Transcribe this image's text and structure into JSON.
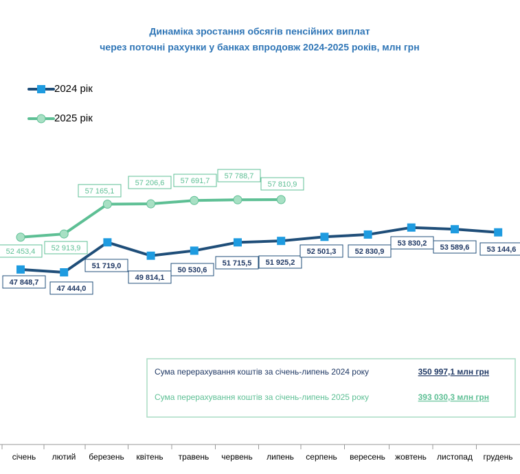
{
  "chart_data": {
    "type": "line",
    "title": [
      "Динаміка зростання обсягів пенсійних виплат",
      "через поточні рахунки у банках впродовж 2024-2025 років, млн грн"
    ],
    "categories": [
      "січень",
      "лютий",
      "березень",
      "квітень",
      "травень",
      "червень",
      "липень",
      "серпень",
      "вересень",
      "жовтень",
      "листопад",
      "грудень"
    ],
    "series": [
      {
        "name": "2024 рік",
        "color": "#1f4e79",
        "marker_color": "#1e9be0",
        "marker": "square",
        "values": [
          47848.7,
          47444.0,
          51719.0,
          49814.1,
          50530.6,
          51715.5,
          51925.2,
          52501.3,
          52830.9,
          53830.2,
          53589.6,
          53144.6
        ],
        "value_labels": [
          "47 848,7",
          "47 444,0",
          "51 719,0",
          "49 814,1",
          "50 530,6",
          "51 715,5",
          "51 925,2",
          "52 501,3",
          "52 830,9",
          "53 830,2",
          "53 589,6",
          "53 144,6"
        ]
      },
      {
        "name": "2025 рік",
        "color": "#5dbf94",
        "marker_color": "#a8e0c4",
        "marker": "circle",
        "values": [
          52453.4,
          52913.9,
          57165.1,
          57206.6,
          57691.7,
          57788.7,
          57810.9,
          null,
          null,
          null,
          null,
          null
        ],
        "value_labels": [
          "52 453,4",
          "52 913,9",
          "57 165,1",
          "57 206,6",
          "57 691,7",
          "57 788,7",
          "57 810,9",
          null,
          null,
          null,
          null,
          null
        ]
      }
    ],
    "annotations": [
      {
        "text": "Сума перерахування коштів  за січень-липень 2024 року",
        "total": "350 997,1 млн грн"
      },
      {
        "text": "Сума перерахування коштів  за січень-липень 2025 року",
        "total": "393 030,3 млн грн"
      }
    ]
  }
}
